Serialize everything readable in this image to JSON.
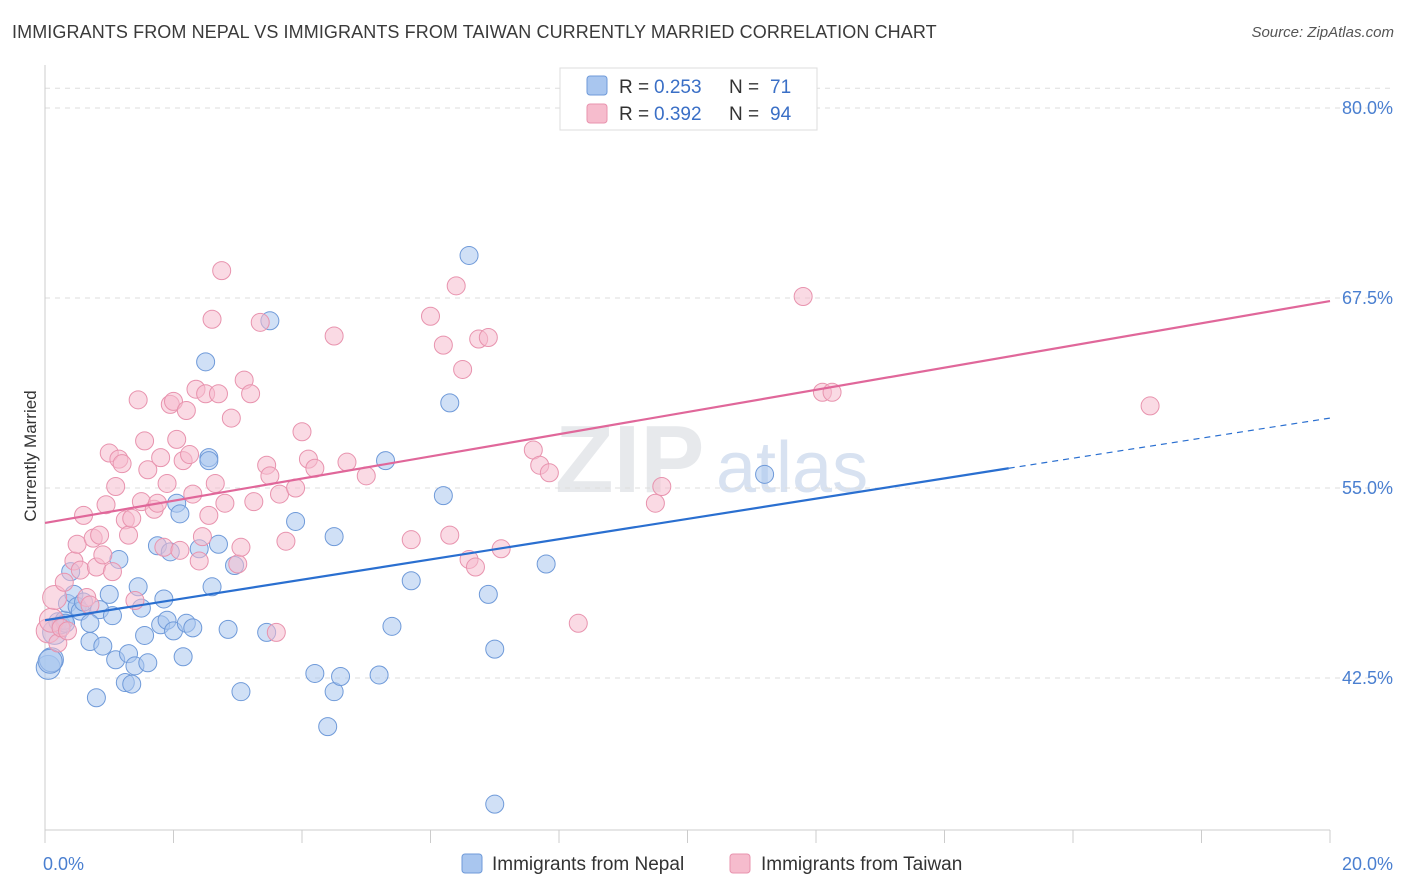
{
  "title": "IMMIGRANTS FROM NEPAL VS IMMIGRANTS FROM TAIWAN CURRENTLY MARRIED CORRELATION CHART",
  "source": "Source: ZipAtlas.com",
  "watermark": {
    "zip": "ZIP",
    "atlas": "atlas"
  },
  "colors": {
    "nepal_fill": "#a9c6ef",
    "nepal_stroke": "#6f9ad9",
    "nepal_line": "#2a6fd0",
    "taiwan_fill": "#f6bccd",
    "taiwan_stroke": "#e893ae",
    "taiwan_line": "#e0679a",
    "grid": "#dddddd",
    "axis_label": "#4a7fd0"
  },
  "legend": {
    "r_label": "R =",
    "n_label": "N =",
    "rows": [
      {
        "r": "0.253",
        "n": "71"
      },
      {
        "r": "0.392",
        "n": "94"
      }
    ]
  },
  "chart_data": {
    "type": "scatter",
    "title": "IMMIGRANTS FROM NEPAL VS IMMIGRANTS FROM TAIWAN CURRENTLY MARRIED CORRELATION CHART",
    "xlabel": "",
    "ylabel": "Currently Married",
    "xlim": [
      0,
      20
    ],
    "ylim": [
      32.5,
      82.5
    ],
    "x_tick_labels": [
      "0.0%",
      "20.0%"
    ],
    "y_ticks": [
      42.5,
      55.0,
      67.5,
      80.0
    ],
    "y_tick_labels": [
      "42.5%",
      "55.0%",
      "67.5%",
      "80.0%"
    ],
    "grid": true,
    "legend_position": "top-center",
    "series": [
      {
        "name": "Immigrants from Nepal",
        "R": 0.253,
        "N": 71,
        "trend": {
          "x0": 0.0,
          "y0": 46.3,
          "x1": 15.0,
          "y1": 56.3,
          "dash_to_x": 20.0,
          "dash_to_y": 59.6
        },
        "points": [
          [
            0.05,
            43.2
          ],
          [
            0.1,
            43.7
          ],
          [
            0.15,
            45.5
          ],
          [
            0.2,
            46.2
          ],
          [
            0.25,
            46.0
          ],
          [
            0.3,
            46.3
          ],
          [
            0.35,
            47.4
          ],
          [
            0.4,
            49.5
          ],
          [
            0.45,
            48.0
          ],
          [
            0.5,
            47.2
          ],
          [
            0.55,
            46.9
          ],
          [
            0.6,
            47.5
          ],
          [
            0.7,
            44.9
          ],
          [
            0.8,
            41.2
          ],
          [
            0.85,
            47.0
          ],
          [
            0.9,
            44.6
          ],
          [
            1.0,
            48.0
          ],
          [
            1.05,
            46.6
          ],
          [
            1.1,
            43.7
          ],
          [
            1.15,
            50.3
          ],
          [
            1.25,
            42.2
          ],
          [
            1.3,
            44.1
          ],
          [
            1.35,
            42.1
          ],
          [
            1.4,
            43.3
          ],
          [
            1.45,
            48.5
          ],
          [
            1.5,
            47.1
          ],
          [
            1.55,
            45.3
          ],
          [
            1.6,
            43.5
          ],
          [
            1.75,
            51.2
          ],
          [
            1.8,
            46.0
          ],
          [
            1.85,
            47.7
          ],
          [
            1.9,
            46.3
          ],
          [
            2.0,
            45.6
          ],
          [
            2.05,
            54.0
          ],
          [
            2.1,
            53.3
          ],
          [
            2.15,
            43.9
          ],
          [
            2.2,
            46.1
          ],
          [
            2.3,
            45.8
          ],
          [
            2.4,
            51.0
          ],
          [
            2.5,
            63.3
          ],
          [
            2.55,
            57.0
          ],
          [
            2.6,
            48.5
          ],
          [
            2.7,
            51.3
          ],
          [
            2.85,
            45.7
          ],
          [
            2.95,
            49.9
          ],
          [
            3.05,
            41.6
          ],
          [
            3.5,
            66.0
          ],
          [
            3.45,
            45.5
          ],
          [
            3.9,
            52.8
          ],
          [
            4.2,
            42.8
          ],
          [
            4.4,
            39.3
          ],
          [
            4.5,
            41.6
          ],
          [
            4.5,
            51.8
          ],
          [
            4.6,
            42.6
          ],
          [
            5.2,
            42.7
          ],
          [
            5.3,
            56.8
          ],
          [
            5.4,
            45.9
          ],
          [
            5.7,
            48.9
          ],
          [
            6.2,
            54.5
          ],
          [
            6.3,
            60.6
          ],
          [
            6.6,
            70.3
          ],
          [
            6.9,
            48.0
          ],
          [
            7.0,
            44.4
          ],
          [
            7.0,
            34.2
          ],
          [
            7.8,
            50.0
          ],
          [
            11.2,
            55.9
          ],
          [
            0.08,
            43.6
          ],
          [
            0.32,
            46.1
          ],
          [
            1.95,
            50.8
          ],
          [
            2.55,
            56.8
          ],
          [
            0.7,
            46.1
          ]
        ]
      },
      {
        "name": "Immigrants from Taiwan",
        "R": 0.392,
        "N": 94,
        "trend": {
          "x0": 0.0,
          "y0": 52.7,
          "x1": 20.0,
          "y1": 67.3
        },
        "points": [
          [
            0.05,
            45.6
          ],
          [
            0.1,
            46.3
          ],
          [
            0.15,
            47.8
          ],
          [
            0.2,
            44.8
          ],
          [
            0.25,
            45.8
          ],
          [
            0.3,
            48.8
          ],
          [
            0.35,
            45.6
          ],
          [
            0.45,
            50.2
          ],
          [
            0.5,
            51.3
          ],
          [
            0.55,
            49.6
          ],
          [
            0.6,
            53.2
          ],
          [
            0.65,
            47.8
          ],
          [
            0.7,
            47.3
          ],
          [
            0.75,
            51.7
          ],
          [
            0.8,
            49.8
          ],
          [
            0.85,
            51.9
          ],
          [
            0.9,
            50.6
          ],
          [
            0.95,
            53.9
          ],
          [
            1.0,
            57.3
          ],
          [
            1.05,
            49.5
          ],
          [
            1.1,
            55.1
          ],
          [
            1.15,
            56.9
          ],
          [
            1.2,
            56.6
          ],
          [
            1.25,
            52.9
          ],
          [
            1.3,
            51.9
          ],
          [
            1.35,
            53.0
          ],
          [
            1.4,
            47.6
          ],
          [
            1.45,
            60.8
          ],
          [
            1.5,
            54.1
          ],
          [
            1.55,
            58.1
          ],
          [
            1.6,
            56.2
          ],
          [
            1.7,
            53.6
          ],
          [
            1.75,
            54.0
          ],
          [
            1.8,
            57.0
          ],
          [
            1.85,
            51.1
          ],
          [
            1.9,
            55.3
          ],
          [
            1.95,
            60.5
          ],
          [
            2.0,
            60.7
          ],
          [
            2.05,
            58.2
          ],
          [
            2.1,
            50.9
          ],
          [
            2.15,
            56.8
          ],
          [
            2.2,
            60.1
          ],
          [
            2.25,
            57.2
          ],
          [
            2.3,
            54.6
          ],
          [
            2.35,
            61.5
          ],
          [
            2.4,
            50.2
          ],
          [
            2.45,
            51.8
          ],
          [
            2.5,
            61.2
          ],
          [
            2.55,
            53.2
          ],
          [
            2.6,
            66.1
          ],
          [
            2.65,
            55.3
          ],
          [
            2.7,
            61.2
          ],
          [
            2.75,
            69.3
          ],
          [
            2.8,
            54.0
          ],
          [
            2.9,
            59.6
          ],
          [
            3.0,
            50.0
          ],
          [
            3.05,
            51.1
          ],
          [
            3.1,
            62.1
          ],
          [
            3.2,
            61.2
          ],
          [
            3.25,
            54.1
          ],
          [
            3.35,
            65.9
          ],
          [
            3.45,
            56.5
          ],
          [
            3.5,
            55.8
          ],
          [
            3.6,
            45.5
          ],
          [
            3.65,
            54.6
          ],
          [
            3.75,
            51.5
          ],
          [
            3.9,
            55.0
          ],
          [
            4.0,
            58.7
          ],
          [
            4.1,
            56.9
          ],
          [
            4.2,
            56.3
          ],
          [
            4.5,
            65.0
          ],
          [
            4.7,
            56.7
          ],
          [
            5.0,
            55.8
          ],
          [
            5.7,
            51.6
          ],
          [
            6.0,
            66.3
          ],
          [
            6.2,
            64.4
          ],
          [
            6.3,
            51.9
          ],
          [
            6.4,
            68.3
          ],
          [
            6.5,
            62.8
          ],
          [
            6.6,
            50.3
          ],
          [
            6.7,
            49.8
          ],
          [
            6.75,
            64.8
          ],
          [
            6.9,
            64.9
          ],
          [
            7.1,
            51.0
          ],
          [
            7.6,
            57.5
          ],
          [
            7.7,
            56.5
          ],
          [
            7.85,
            56.0
          ],
          [
            8.3,
            46.1
          ],
          [
            9.5,
            54.0
          ],
          [
            9.6,
            55.1
          ],
          [
            11.8,
            67.6
          ],
          [
            12.1,
            61.3
          ],
          [
            12.25,
            61.3
          ],
          [
            17.2,
            60.4
          ]
        ]
      }
    ]
  },
  "bottom_legend": [
    {
      "label": "Immigrants from Nepal"
    },
    {
      "label": "Immigrants from Taiwan"
    }
  ]
}
